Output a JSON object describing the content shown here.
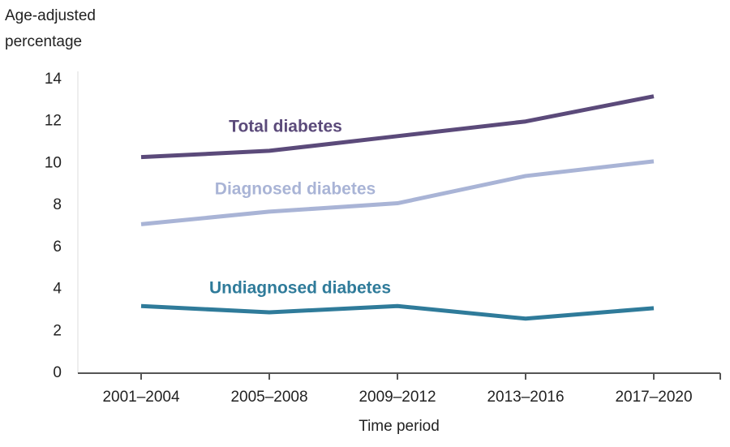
{
  "chart_data": {
    "type": "line",
    "y_label": [
      "Age-adjusted",
      "percentage"
    ],
    "x_label": "Time period",
    "categories": [
      "2001–2004",
      "2005–2008",
      "2009–2012",
      "2013–2016",
      "2017–2020"
    ],
    "series": [
      {
        "name": "Total diabetes",
        "color": "#5b4a7a",
        "values": [
          10.3,
          10.6,
          11.3,
          12.0,
          13.2
        ]
      },
      {
        "name": "Diagnosed diabetes",
        "color": "#a9b4d6",
        "values": [
          7.1,
          7.7,
          8.1,
          9.4,
          10.1
        ]
      },
      {
        "name": "Undiagnosed diabetes",
        "color": "#2f7b9a",
        "values": [
          3.2,
          2.9,
          3.2,
          2.6,
          3.1
        ]
      }
    ],
    "ylim": [
      0,
      14
    ],
    "yticks": [
      0,
      2,
      4,
      6,
      8,
      10,
      12,
      14
    ],
    "grid": false
  }
}
